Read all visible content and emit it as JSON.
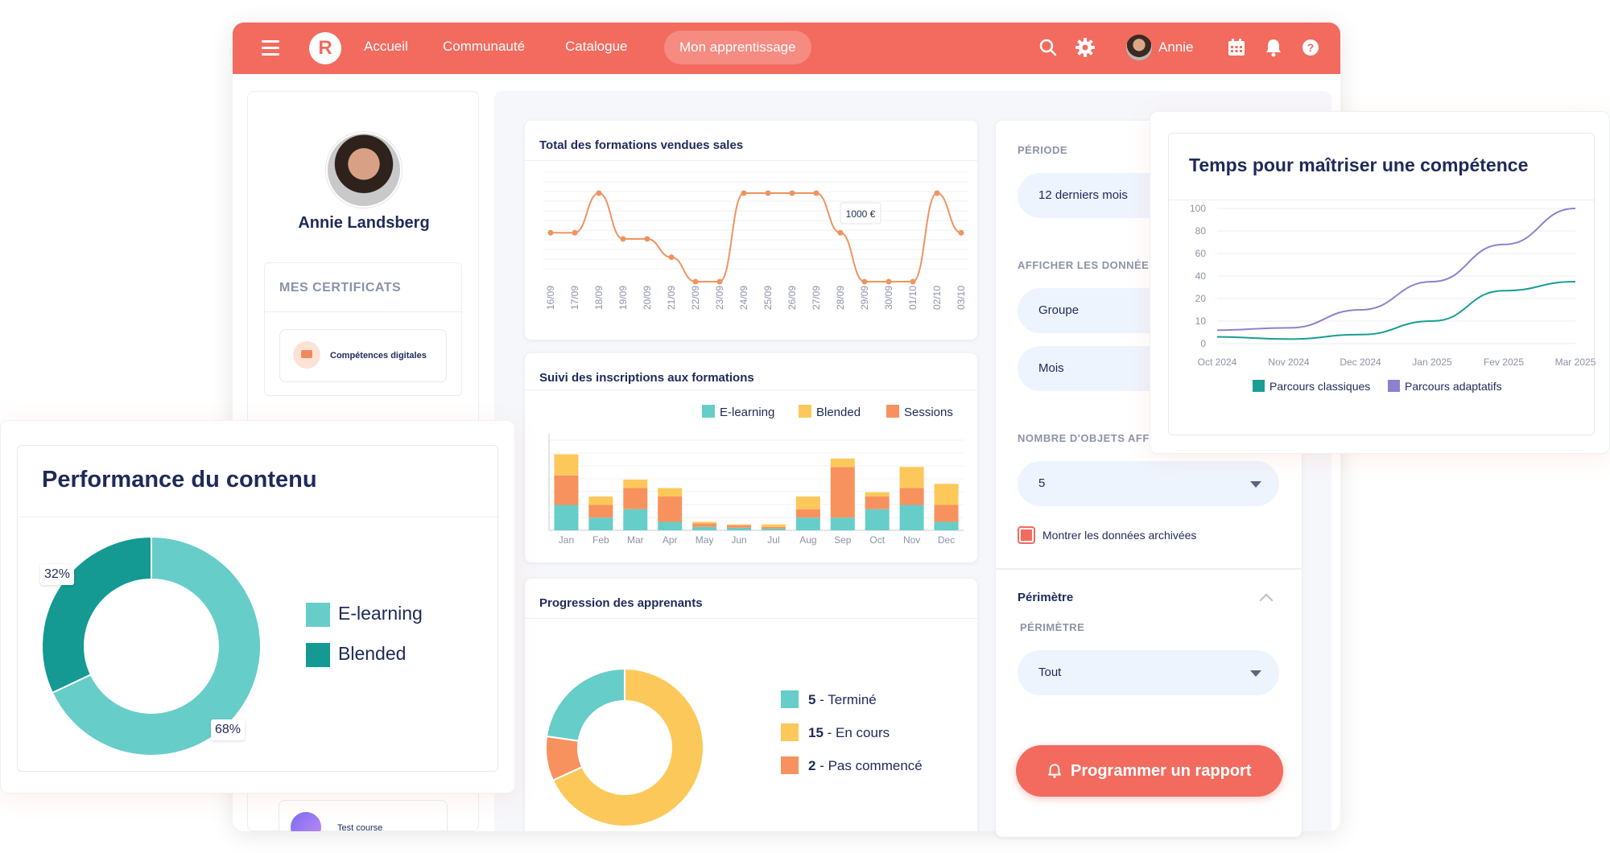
{
  "topbar": {
    "menu_icon": "hamburger-icon",
    "logo_text": "R",
    "nav": [
      "Accueil",
      "Communauté",
      "Catalogue",
      "Mon apprentissage"
    ],
    "active_nav": "Mon apprentissage",
    "icons": [
      "search-icon",
      "gear-icon",
      "calendar-icon",
      "bell-icon",
      "help-icon"
    ],
    "user_name": "Annie",
    "accent": "#f26b5e"
  },
  "profile": {
    "name": "Annie Landsberg",
    "certificates_title": "MES CERTIFICATS",
    "certificate_items": [
      "Compétences digitales"
    ],
    "course_items": [
      "Test course"
    ]
  },
  "sales_chart": {
    "title": "Total des formations vendues sales",
    "tooltip": "1000 €",
    "chart_data": {
      "type": "line",
      "title": "Total des formations vendues sales",
      "categories": [
        "16/09",
        "17/09",
        "18/09",
        "19/09",
        "20/09",
        "21/09",
        "22/09",
        "23/09",
        "24/09",
        "25/09",
        "26/09",
        "27/09",
        "28/09",
        "29/09",
        "30/09",
        "01/10",
        "02/10",
        "03/10"
      ],
      "values": [
        600,
        600,
        1250,
        500,
        500,
        200,
        -200,
        -200,
        1250,
        1250,
        1250,
        1250,
        600,
        -200,
        -200,
        -200,
        1250,
        600
      ],
      "annotation": "1000 €",
      "color": "#f0935f"
    }
  },
  "enroll_chart": {
    "title": "Suivi des inscriptions aux formations",
    "chart_data": {
      "type": "bar",
      "stacked": true,
      "title": "Suivi des inscriptions aux formations",
      "categories": [
        "Jan",
        "Feb",
        "Mar",
        "Apr",
        "May",
        "Jun",
        "Jul",
        "Aug",
        "Sep",
        "Oct",
        "Nov",
        "Dec"
      ],
      "series": [
        {
          "name": "E-learning",
          "color": "#67cdc8",
          "values": [
            30,
            15,
            25,
            10,
            4,
            3,
            2,
            15,
            15,
            25,
            30,
            10
          ]
        },
        {
          "name": "Sessions",
          "color": "#f7925e",
          "values": [
            35,
            15,
            25,
            30,
            4,
            3,
            2,
            10,
            60,
            15,
            20,
            20
          ]
        },
        {
          "name": "Blended",
          "color": "#fdc85a",
          "values": [
            25,
            10,
            10,
            10,
            2,
            1,
            3,
            15,
            10,
            5,
            25,
            25
          ]
        }
      ],
      "legend": [
        "E-learning",
        "Blended",
        "Sessions"
      ],
      "legend_position": "top-right"
    }
  },
  "progress_chart": {
    "title": "Progression des apprenants",
    "chart_data": {
      "type": "pie",
      "donut": true,
      "title": "Progression des apprenants",
      "slices": [
        {
          "count": "5",
          "label": "Terminé",
          "value": 5,
          "color": "#67cdc8"
        },
        {
          "count": "15",
          "label": "En cours",
          "value": 15,
          "color": "#fdc85a"
        },
        {
          "count": "2",
          "label": "Pas commencé",
          "value": 2,
          "color": "#f7925e"
        }
      ]
    }
  },
  "filters": {
    "period_label": "PÉRIODE",
    "period_value": "12 derniers mois",
    "display_label": "AFFICHER LES DONNÉES",
    "group_value": "Groupe",
    "interval_value": "Mois",
    "count_label": "NOMBRE D'OBJETS AFFIC",
    "count_value": "5",
    "archived_label": "Montrer les données archivées",
    "perimeter_header": "Périmètre",
    "perimeter_label": "PÉRIMÈTRE",
    "perimeter_value": "Tout",
    "report_button": "Programmer un rapport"
  },
  "performance": {
    "title": "Performance du contenu",
    "label_blended": "32%",
    "label_elearning": "68%",
    "chart_data": {
      "type": "pie",
      "donut": true,
      "title": "Performance du contenu",
      "slices": [
        {
          "label": "E-learning",
          "value": 68,
          "color": "#67cdc8"
        },
        {
          "label": "Blended",
          "value": 32,
          "color": "#149a92"
        }
      ]
    }
  },
  "mastery": {
    "title": "Temps pour maîtriser une compétence",
    "chart_data": {
      "type": "line",
      "title": "Temps pour maîtriser une compétence",
      "x": [
        "Oct 2024",
        "Nov 2024",
        "Dec 2024",
        "Jan 2025",
        "Fev 2025",
        "Mar 2025"
      ],
      "y_ticks": [
        "0",
        "10",
        "20",
        "40",
        "60",
        "80",
        "100"
      ],
      "series": [
        {
          "name": "Parcours classiques",
          "color": "#1a9e92",
          "values": [
            3,
            2,
            4,
            10,
            27,
            35
          ]
        },
        {
          "name": "Parcours adaptatifs",
          "color": "#8f80cf",
          "values": [
            6,
            7,
            15,
            35,
            68,
            100
          ]
        }
      ],
      "legend_position": "bottom",
      "grid": true
    }
  }
}
